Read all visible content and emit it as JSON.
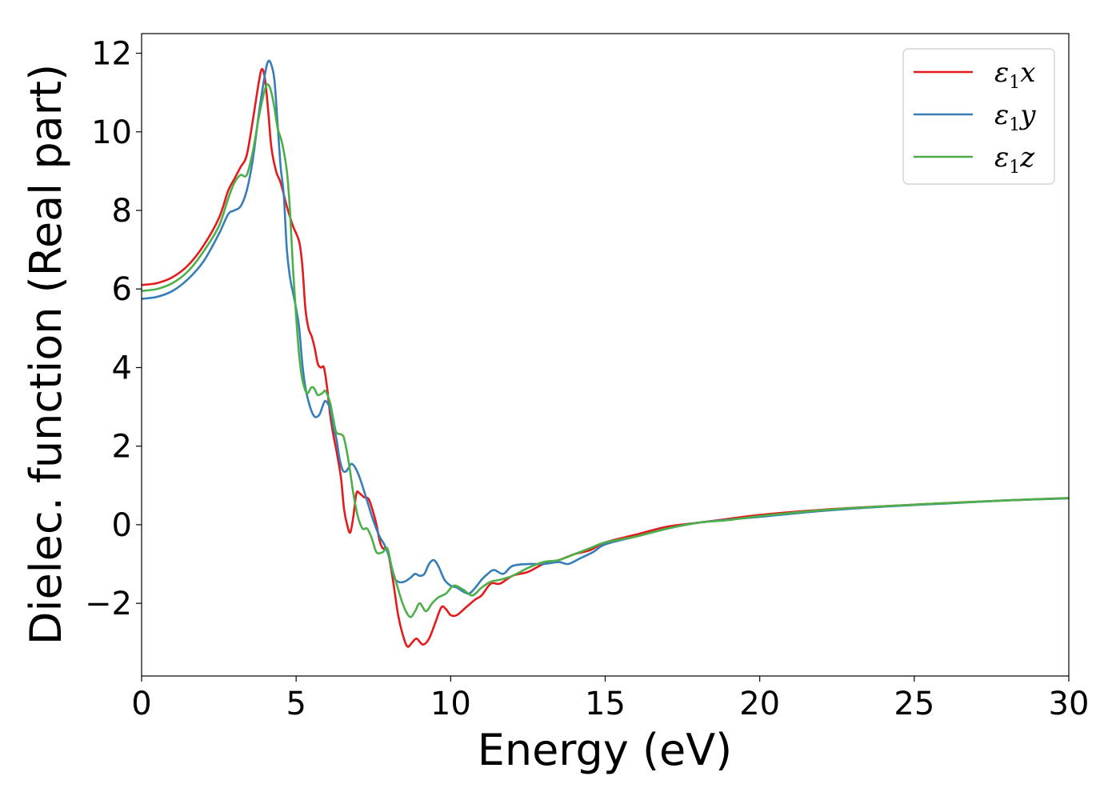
{
  "chart_data": {
    "type": "line",
    "xlabel": "Energy (eV)",
    "ylabel": "Dielec. function (Real part)",
    "xlim": [
      0,
      30
    ],
    "ylim": [
      -3.85,
      12.5
    ],
    "xticks": [
      0,
      5,
      10,
      15,
      20,
      25,
      30
    ],
    "xtick_labels": [
      "0",
      "5",
      "10",
      "15",
      "20",
      "25",
      "30"
    ],
    "yticks": [
      -2,
      0,
      2,
      4,
      6,
      8,
      10,
      12
    ],
    "ytick_labels": [
      "−2",
      "0",
      "2",
      "4",
      "6",
      "8",
      "10",
      "12"
    ],
    "grid": false,
    "legend_position": "top-right",
    "series": [
      {
        "name": "ε",
        "sub": "1",
        "var": "x",
        "color": "#e41a1c",
        "points": [
          [
            0,
            6.1
          ],
          [
            0.5,
            6.15
          ],
          [
            1,
            6.3
          ],
          [
            1.5,
            6.6
          ],
          [
            2,
            7.1
          ],
          [
            2.5,
            7.8
          ],
          [
            2.8,
            8.5
          ],
          [
            3,
            8.8
          ],
          [
            3.2,
            9.1
          ],
          [
            3.4,
            9.4
          ],
          [
            3.6,
            10.3
          ],
          [
            3.8,
            11.3
          ],
          [
            3.9,
            11.6
          ],
          [
            4,
            11.3
          ],
          [
            4.1,
            10.5
          ],
          [
            4.2,
            9.6
          ],
          [
            4.35,
            9.0
          ],
          [
            4.5,
            8.7
          ],
          [
            4.7,
            8.1
          ],
          [
            4.9,
            7.6
          ],
          [
            5.1,
            7.2
          ],
          [
            5.2,
            6.6
          ],
          [
            5.3,
            5.5
          ],
          [
            5.4,
            5.0
          ],
          [
            5.5,
            4.8
          ],
          [
            5.6,
            4.5
          ],
          [
            5.7,
            4.1
          ],
          [
            5.8,
            4.0
          ],
          [
            5.9,
            4.0
          ],
          [
            6,
            3.5
          ],
          [
            6.1,
            2.8
          ],
          [
            6.2,
            2.3
          ],
          [
            6.3,
            1.9
          ],
          [
            6.45,
            1.2
          ],
          [
            6.55,
            0.4
          ],
          [
            6.65,
            0.0
          ],
          [
            6.75,
            -0.2
          ],
          [
            6.85,
            0.2
          ],
          [
            6.95,
            0.8
          ],
          [
            7.05,
            0.8
          ],
          [
            7.2,
            0.7
          ],
          [
            7.35,
            0.65
          ],
          [
            7.5,
            0.3
          ],
          [
            7.6,
            0.0
          ],
          [
            7.7,
            -0.4
          ],
          [
            7.8,
            -0.6
          ],
          [
            7.9,
            -0.6
          ],
          [
            8,
            -0.8
          ],
          [
            8.15,
            -1.5
          ],
          [
            8.3,
            -2.3
          ],
          [
            8.45,
            -2.8
          ],
          [
            8.6,
            -3.1
          ],
          [
            8.75,
            -3.0
          ],
          [
            8.9,
            -2.9
          ],
          [
            9.1,
            -3.05
          ],
          [
            9.3,
            -2.9
          ],
          [
            9.5,
            -2.5
          ],
          [
            9.7,
            -2.1
          ],
          [
            9.85,
            -2.15
          ],
          [
            10,
            -2.3
          ],
          [
            10.2,
            -2.3
          ],
          [
            10.5,
            -2.1
          ],
          [
            10.8,
            -1.9
          ],
          [
            11,
            -1.8
          ],
          [
            11.3,
            -1.5
          ],
          [
            11.6,
            -1.5
          ],
          [
            12,
            -1.3
          ],
          [
            12.5,
            -1.2
          ],
          [
            13,
            -1.0
          ],
          [
            13.5,
            -0.9
          ],
          [
            14,
            -0.75
          ],
          [
            14.5,
            -0.65
          ],
          [
            15,
            -0.45
          ],
          [
            16,
            -0.25
          ],
          [
            17,
            -0.05
          ],
          [
            18,
            0.05
          ],
          [
            19,
            0.15
          ],
          [
            20,
            0.25
          ],
          [
            22,
            0.38
          ],
          [
            24,
            0.47
          ],
          [
            26,
            0.55
          ],
          [
            28,
            0.62
          ],
          [
            30,
            0.68
          ]
        ]
      },
      {
        "name": "ε",
        "sub": "1",
        "var": "y",
        "color": "#377eb8",
        "points": [
          [
            0,
            5.75
          ],
          [
            0.5,
            5.8
          ],
          [
            1,
            5.95
          ],
          [
            1.5,
            6.25
          ],
          [
            2,
            6.7
          ],
          [
            2.5,
            7.4
          ],
          [
            2.8,
            7.9
          ],
          [
            3,
            8.0
          ],
          [
            3.2,
            8.1
          ],
          [
            3.4,
            8.5
          ],
          [
            3.6,
            9.3
          ],
          [
            3.8,
            10.5
          ],
          [
            4,
            11.5
          ],
          [
            4.1,
            11.8
          ],
          [
            4.2,
            11.7
          ],
          [
            4.3,
            11.3
          ],
          [
            4.4,
            10.2
          ],
          [
            4.5,
            9.1
          ],
          [
            4.6,
            8.4
          ],
          [
            4.7,
            7.0
          ],
          [
            4.8,
            6.3
          ],
          [
            4.9,
            5.9
          ],
          [
            5,
            5.5
          ],
          [
            5.1,
            5.0
          ],
          [
            5.2,
            4.1
          ],
          [
            5.3,
            3.5
          ],
          [
            5.45,
            3.0
          ],
          [
            5.6,
            2.75
          ],
          [
            5.75,
            2.8
          ],
          [
            5.85,
            3.0
          ],
          [
            5.95,
            3.15
          ],
          [
            6.1,
            2.95
          ],
          [
            6.2,
            2.5
          ],
          [
            6.3,
            2.2
          ],
          [
            6.4,
            1.7
          ],
          [
            6.5,
            1.4
          ],
          [
            6.6,
            1.35
          ],
          [
            6.7,
            1.45
          ],
          [
            6.8,
            1.55
          ],
          [
            6.95,
            1.4
          ],
          [
            7.1,
            1.1
          ],
          [
            7.3,
            0.6
          ],
          [
            7.5,
            0.1
          ],
          [
            7.7,
            -0.3
          ],
          [
            7.85,
            -0.5
          ],
          [
            8,
            -0.8
          ],
          [
            8.15,
            -1.3
          ],
          [
            8.3,
            -1.45
          ],
          [
            8.5,
            -1.45
          ],
          [
            8.7,
            -1.35
          ],
          [
            8.85,
            -1.25
          ],
          [
            9,
            -1.3
          ],
          [
            9.15,
            -1.25
          ],
          [
            9.3,
            -1.0
          ],
          [
            9.45,
            -0.9
          ],
          [
            9.6,
            -1.05
          ],
          [
            9.8,
            -1.4
          ],
          [
            10,
            -1.55
          ],
          [
            10.2,
            -1.6
          ],
          [
            10.4,
            -1.7
          ],
          [
            10.6,
            -1.75
          ],
          [
            10.8,
            -1.6
          ],
          [
            11,
            -1.4
          ],
          [
            11.2,
            -1.25
          ],
          [
            11.4,
            -1.15
          ],
          [
            11.7,
            -1.25
          ],
          [
            12,
            -1.05
          ],
          [
            12.5,
            -1.0
          ],
          [
            13,
            -1.0
          ],
          [
            13.5,
            -0.95
          ],
          [
            13.8,
            -1.0
          ],
          [
            14.2,
            -0.85
          ],
          [
            14.6,
            -0.7
          ],
          [
            15,
            -0.5
          ],
          [
            16,
            -0.3
          ],
          [
            17,
            -0.1
          ],
          [
            18,
            0.05
          ],
          [
            19,
            0.13
          ],
          [
            20,
            0.2
          ],
          [
            22,
            0.35
          ],
          [
            24,
            0.46
          ],
          [
            26,
            0.54
          ],
          [
            28,
            0.62
          ],
          [
            30,
            0.67
          ]
        ]
      },
      {
        "name": "ε",
        "sub": "1",
        "var": "z",
        "color": "#4daf4a",
        "points": [
          [
            0,
            5.95
          ],
          [
            0.5,
            6.0
          ],
          [
            1,
            6.15
          ],
          [
            1.5,
            6.45
          ],
          [
            2,
            6.95
          ],
          [
            2.5,
            7.6
          ],
          [
            2.8,
            8.3
          ],
          [
            3,
            8.7
          ],
          [
            3.2,
            8.9
          ],
          [
            3.4,
            8.9
          ],
          [
            3.6,
            9.5
          ],
          [
            3.8,
            10.4
          ],
          [
            4,
            11.1
          ],
          [
            4.1,
            11.2
          ],
          [
            4.2,
            11.0
          ],
          [
            4.3,
            10.6
          ],
          [
            4.4,
            10.1
          ],
          [
            4.55,
            9.7
          ],
          [
            4.7,
            9.0
          ],
          [
            4.8,
            8.0
          ],
          [
            4.9,
            6.5
          ],
          [
            5,
            5.3
          ],
          [
            5.1,
            4.3
          ],
          [
            5.2,
            3.7
          ],
          [
            5.35,
            3.35
          ],
          [
            5.5,
            3.5
          ],
          [
            5.6,
            3.45
          ],
          [
            5.7,
            3.3
          ],
          [
            5.85,
            3.35
          ],
          [
            5.95,
            3.4
          ],
          [
            6.1,
            3.1
          ],
          [
            6.2,
            2.7
          ],
          [
            6.3,
            2.35
          ],
          [
            6.45,
            2.3
          ],
          [
            6.55,
            2.2
          ],
          [
            6.7,
            1.6
          ],
          [
            6.85,
            0.8
          ],
          [
            7,
            0.2
          ],
          [
            7.15,
            -0.1
          ],
          [
            7.3,
            -0.1
          ],
          [
            7.45,
            -0.35
          ],
          [
            7.6,
            -0.7
          ],
          [
            7.8,
            -0.7
          ],
          [
            7.95,
            -0.6
          ],
          [
            8.1,
            -1.1
          ],
          [
            8.25,
            -1.5
          ],
          [
            8.4,
            -1.9
          ],
          [
            8.55,
            -2.2
          ],
          [
            8.7,
            -2.35
          ],
          [
            8.85,
            -2.2
          ],
          [
            9,
            -2.0
          ],
          [
            9.2,
            -2.2
          ],
          [
            9.4,
            -2.0
          ],
          [
            9.6,
            -1.85
          ],
          [
            9.85,
            -1.75
          ],
          [
            10.1,
            -1.55
          ],
          [
            10.4,
            -1.65
          ],
          [
            10.7,
            -1.8
          ],
          [
            11,
            -1.6
          ],
          [
            11.3,
            -1.45
          ],
          [
            11.6,
            -1.4
          ],
          [
            12,
            -1.3
          ],
          [
            12.5,
            -1.1
          ],
          [
            13,
            -0.95
          ],
          [
            13.5,
            -0.9
          ],
          [
            14,
            -0.75
          ],
          [
            14.5,
            -0.6
          ],
          [
            15,
            -0.45
          ],
          [
            16,
            -0.3
          ],
          [
            17,
            -0.1
          ],
          [
            18,
            0.05
          ],
          [
            19,
            0.12
          ],
          [
            20,
            0.22
          ],
          [
            22,
            0.37
          ],
          [
            24,
            0.47
          ],
          [
            26,
            0.55
          ],
          [
            28,
            0.62
          ],
          [
            30,
            0.68
          ]
        ]
      }
    ]
  }
}
